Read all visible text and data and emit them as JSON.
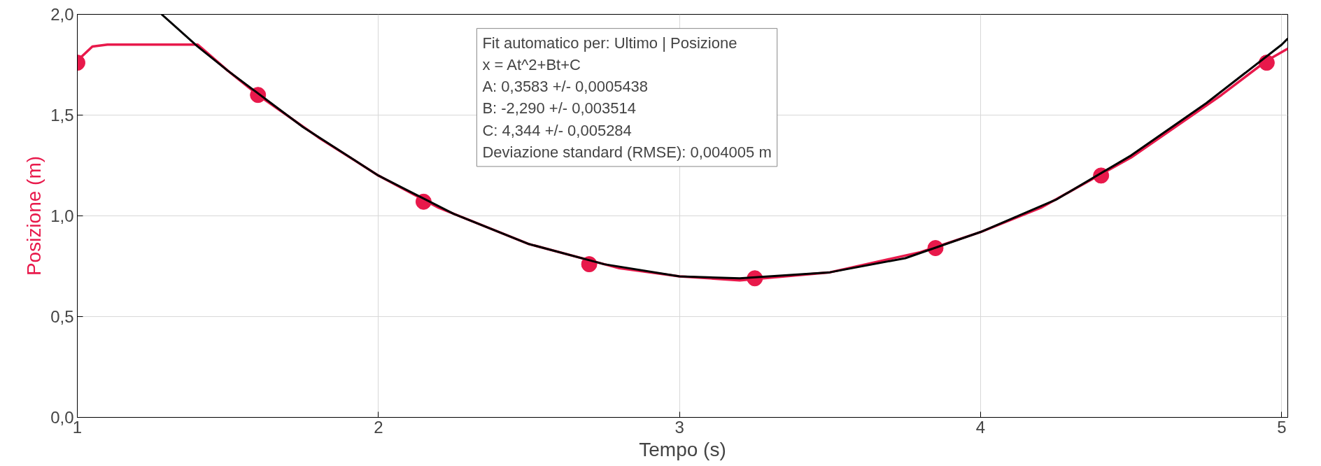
{
  "chart_data": {
    "type": "line",
    "xlabel": "Tempo (s)",
    "ylabel": "Posizione (m)",
    "xlim": [
      1,
      5.02
    ],
    "ylim": [
      0,
      2
    ],
    "xticks": [
      1,
      2,
      3,
      4,
      5
    ],
    "yticks": [
      {
        "value": 0,
        "label": "0,0"
      },
      {
        "value": 0.5,
        "label": "0,5"
      },
      {
        "value": 1,
        "label": "1,0"
      },
      {
        "value": 1.5,
        "label": "1,5"
      },
      {
        "value": 2,
        "label": "2,0"
      }
    ],
    "grid": true,
    "line_style": "solid",
    "series": [
      {
        "color": "#e8194b",
        "x": [
          1.0,
          1.05,
          1.1,
          1.2,
          1.3,
          1.4,
          1.5,
          1.6,
          1.8,
          2.0,
          2.2,
          2.5,
          2.8,
          3.0,
          3.2,
          3.5,
          3.8,
          4.0,
          4.2,
          4.5,
          4.8,
          4.95,
          5.02
        ],
        "values": [
          1.77,
          1.84,
          1.85,
          1.85,
          1.85,
          1.85,
          1.72,
          1.6,
          1.39,
          1.2,
          1.04,
          0.86,
          0.74,
          0.7,
          0.68,
          0.72,
          0.82,
          0.92,
          1.04,
          1.29,
          1.6,
          1.77,
          1.83
        ]
      },
      {
        "type": "scatter",
        "marker": "circle",
        "color": "#e8194b",
        "x": [
          1.0,
          1.6,
          2.15,
          2.7,
          3.25,
          3.85,
          4.4,
          4.95
        ],
        "values": [
          1.76,
          1.6,
          1.07,
          0.76,
          0.69,
          0.84,
          1.2,
          1.76
        ]
      },
      {
        "color": "#000000",
        "x": [
          1.28,
          1.4,
          1.5,
          1.75,
          2.0,
          2.25,
          2.5,
          2.75,
          3.0,
          3.2,
          3.5,
          3.75,
          4.0,
          4.25,
          4.5,
          4.75,
          5.0,
          5.02
        ],
        "values": [
          2.0,
          1.84,
          1.72,
          1.44,
          1.2,
          1.01,
          0.86,
          0.76,
          0.7,
          0.69,
          0.72,
          0.79,
          0.92,
          1.08,
          1.3,
          1.56,
          1.85,
          1.88
        ]
      }
    ],
    "annotations": [
      "Fit automatico per: Ultimo | Posizione\nx = At^2+Bt+C\nA: 0,3583 +/- 0,0005438\nB: -2,290 +/- 0,003514\nC: 4,344 +/- 0,005284\nDeviazione standard (RMSE): 0,004005 m"
    ]
  }
}
